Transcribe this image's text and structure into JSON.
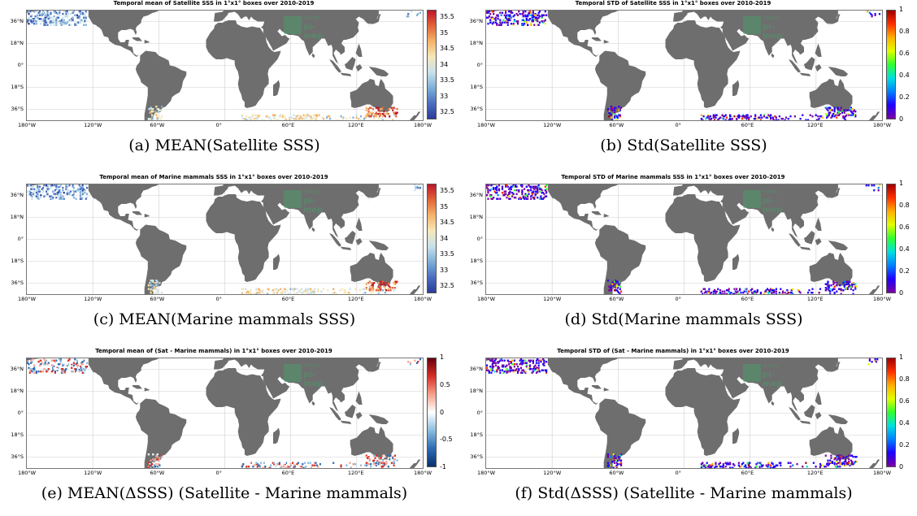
{
  "colors": {
    "land": "#6e6e6e",
    "grid": "#cfcfcf"
  },
  "watermark": {
    "line1": "Sonar",
    "line2": "pi-mep"
  },
  "panels": [
    {
      "title": "Temporal mean of Satellite SSS in 1°x1° boxes over 2010-2019",
      "caption": "(a) MEAN(Satellite SSS)",
      "colormap": "salinity",
      "colorbar_ticks": [
        "35.5",
        "35",
        "34.5",
        "34",
        "33.5",
        "33",
        "32.5"
      ]
    },
    {
      "title": "Temporal STD of Satellite SSS in 1°x1° boxes over 2010-2019",
      "caption": "(b) Std(Satellite SSS)",
      "colormap": "jet",
      "colorbar_ticks": [
        "1",
        "0.8",
        "0.6",
        "0.4",
        "0.2",
        "0"
      ]
    },
    {
      "title": "Temporal mean of Marine mammals SSS in 1°x1° boxes over 2010-2019",
      "caption": "(c) MEAN(Marine mammals SSS)",
      "colormap": "salinity",
      "colorbar_ticks": [
        "35.5",
        "35",
        "34.5",
        "34",
        "33.5",
        "33",
        "32.5"
      ]
    },
    {
      "title": "Temporal STD of Marine mammals SSS in 1°x1° boxes over 2010-2019",
      "caption": "(d) Std(Marine mammals SSS)",
      "colormap": "jet",
      "colorbar_ticks": [
        "1",
        "0.8",
        "0.6",
        "0.4",
        "0.2",
        "0"
      ]
    },
    {
      "title": "Temporal mean of (Sat - Marine mammals) in 1°x1° boxes over 2010-2019",
      "caption": "(e) MEAN(ΔSSS) (Satellite - Marine mammals)",
      "colormap": "diverging",
      "colorbar_ticks": [
        "1",
        "0.5",
        "0",
        "-0.5",
        "-1"
      ]
    },
    {
      "title": "Temporal STD of (Sat - Marine mammals) in 1°x1° boxes over 2010-2019",
      "caption": "(f) Std(ΔSSS) (Satellite - Marine mammals)",
      "colormap": "jet",
      "colorbar_ticks": [
        "1",
        "0.8",
        "0.6",
        "0.4",
        "0.2",
        "0"
      ]
    }
  ],
  "chart_data": [
    {
      "type": "heatmap",
      "title": "Temporal mean of Satellite SSS in 1°x1° boxes over 2010-2019",
      "x_ticks": [
        "180°W",
        "120°W",
        "60°W",
        "0°",
        "60°E",
        "120°E",
        "180°W"
      ],
      "y_ticks": [
        "36°N",
        "18°N",
        "0°",
        "18°S",
        "36°S"
      ],
      "xlim": [
        -180,
        180
      ],
      "ylim": [
        -45,
        45
      ],
      "colorbar": [
        32.25,
        35.75
      ]
    },
    {
      "type": "heatmap",
      "title": "Temporal STD of Satellite SSS in 1°x1° boxes over 2010-2019",
      "x_ticks": [
        "180°W",
        "120°W",
        "60°W",
        "0°",
        "60°E",
        "120°E",
        "180°W"
      ],
      "y_ticks": [
        "36°N",
        "18°N",
        "0°",
        "18°S",
        "36°S"
      ],
      "xlim": [
        -180,
        180
      ],
      "ylim": [
        -45,
        45
      ],
      "colorbar": [
        0,
        1
      ]
    },
    {
      "type": "heatmap",
      "title": "Temporal mean of Marine mammals SSS in 1°x1° boxes over 2010-2019",
      "x_ticks": [
        "180°W",
        "120°W",
        "60°W",
        "0°",
        "60°E",
        "120°E",
        "180°W"
      ],
      "y_ticks": [
        "36°N",
        "18°N",
        "0°",
        "18°S",
        "36°S"
      ],
      "xlim": [
        -180,
        180
      ],
      "ylim": [
        -45,
        45
      ],
      "colorbar": [
        32.25,
        35.75
      ]
    },
    {
      "type": "heatmap",
      "title": "Temporal STD of Marine mammals SSS in 1°x1° boxes over 2010-2019",
      "x_ticks": [
        "180°W",
        "120°W",
        "60°W",
        "0°",
        "60°E",
        "120°E",
        "180°W"
      ],
      "y_ticks": [
        "36°N",
        "18°N",
        "0°",
        "18°S",
        "36°S"
      ],
      "xlim": [
        -180,
        180
      ],
      "ylim": [
        -45,
        45
      ],
      "colorbar": [
        0,
        1
      ]
    },
    {
      "type": "heatmap",
      "title": "Temporal mean of (Sat - Marine mammals) in 1°x1° boxes over 2010-2019",
      "x_ticks": [
        "180°W",
        "120°W",
        "60°W",
        "0°",
        "60°E",
        "120°E",
        "180°W"
      ],
      "y_ticks": [
        "36°N",
        "18°N",
        "0°",
        "18°S",
        "36°S"
      ],
      "xlim": [
        -180,
        180
      ],
      "ylim": [
        -45,
        45
      ],
      "colorbar": [
        -1,
        1
      ]
    },
    {
      "type": "heatmap",
      "title": "Temporal STD of (Sat - Marine mammals) in 1°x1° boxes over 2010-2019",
      "x_ticks": [
        "180°W",
        "120°W",
        "60°W",
        "0°",
        "60°E",
        "120°E",
        "180°W"
      ],
      "y_ticks": [
        "36°N",
        "18°N",
        "0°",
        "18°S",
        "36°S"
      ],
      "xlim": [
        -180,
        180
      ],
      "ylim": [
        -45,
        45
      ],
      "colorbar": [
        0,
        1
      ]
    }
  ]
}
